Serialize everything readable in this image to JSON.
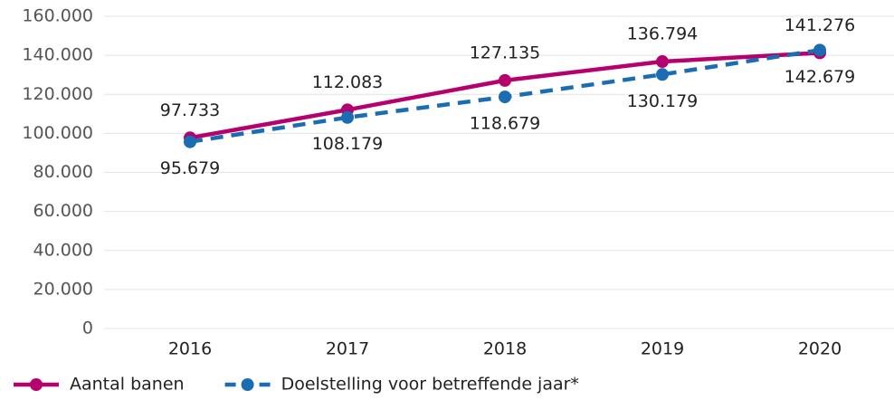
{
  "chart_data": {
    "type": "line",
    "categories": [
      "2016",
      "2017",
      "2018",
      "2019",
      "2020"
    ],
    "series": [
      {
        "name": "Aantal banen",
        "color": "#b5006d",
        "dashed": false,
        "values": [
          97733,
          112083,
          127135,
          136794,
          141276
        ],
        "value_labels": [
          "97.733",
          "112.083",
          "127.135",
          "136.794",
          "141.276"
        ]
      },
      {
        "name": "Doelstelling voor betreffende jaar*",
        "color": "#1a6db3",
        "dashed": true,
        "values": [
          95679,
          108179,
          118679,
          130179,
          142679
        ],
        "value_labels": [
          "95.679",
          "108.179",
          "118.679",
          "130.179",
          "142.679"
        ]
      }
    ],
    "ylim": [
      0,
      160000
    ],
    "yticks": [
      0,
      {
        "value": 20000,
        "label": "20.000"
      },
      {
        "value": 40000,
        "label": "40.000"
      },
      {
        "value": 60000,
        "label": "60.000"
      },
      {
        "value": 80000,
        "label": "80.000"
      },
      {
        "value": 100000,
        "label": "100.000"
      },
      {
        "value": 120000,
        "label": "120.000"
      },
      {
        "value": 140000,
        "label": "140.000"
      },
      {
        "value": 160000,
        "label": "160.000"
      }
    ],
    "grid": true,
    "legend": "bottom"
  }
}
